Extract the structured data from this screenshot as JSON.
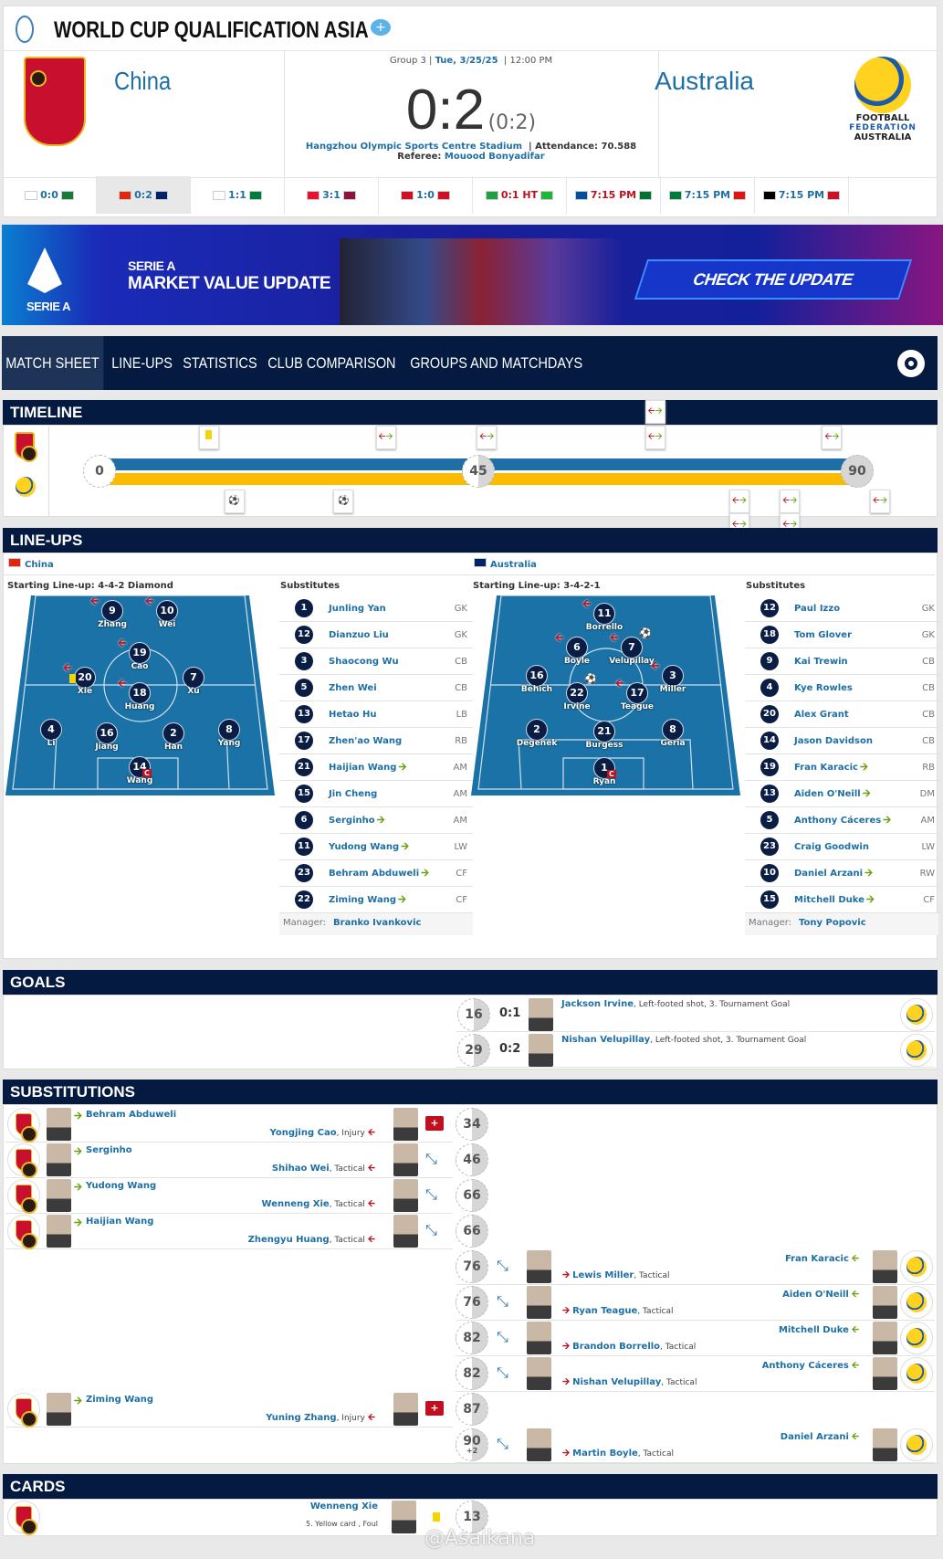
{
  "header": {
    "title": "WORLD CUP QUALIFICATION ASIA",
    "home": "China",
    "away": "Australia",
    "group": "Group 3",
    "date": "Tue, 3/25/25",
    "time": "12:00 PM",
    "score": "0:2",
    "halftime": "(0:2)",
    "stadium": "Hangzhou Olympic Sports Centre Stadium",
    "attendance_label": "Attendance:",
    "attendance": "70.588",
    "referee_label": "Referee:",
    "referee": "Mouood Bonyadifar",
    "away_logo_text": [
      "FOOTBALL",
      "FEDERATION",
      "AUSTRALIA"
    ]
  },
  "fixtures": [
    {
      "score": "0:0",
      "f1": "#ffffff",
      "f2": "#1a7a3a"
    },
    {
      "score": "0:2",
      "f1": "#de2910",
      "f2": "#012169",
      "active": true
    },
    {
      "score": "1:1",
      "f1": "#ffffff",
      "f2": "#007a3d"
    },
    {
      "score": "3:1",
      "f1": "#e8112d",
      "f2": "#8a1538"
    },
    {
      "score": "1:0",
      "f1": "#ce1126",
      "f2": "#ce1126"
    },
    {
      "score": "0:1 HT",
      "f1": "#239f40",
      "f2": "#1eb53a",
      "red": true
    },
    {
      "score": "7:15 PM",
      "f1": "#024fa2",
      "f2": "#00732f",
      "red": true
    },
    {
      "score": "7:15 PM",
      "f1": "#007a3d",
      "f2": "#db161b"
    },
    {
      "score": "7:15 PM",
      "f1": "#000000",
      "f2": "#ce1126"
    }
  ],
  "banner": {
    "brand": "SERIE A",
    "line1": "SERIE A",
    "line2": "MARKET VALUE UPDATE",
    "cta": "CHECK THE UPDATE"
  },
  "nav": {
    "tabs": [
      "MATCH SHEET",
      "LINE-UPS",
      "STATISTICS",
      "CLUB COMPARISON",
      "GROUPS AND MATCHDAYS"
    ],
    "active": 0,
    "settings_icon": "gear-icon"
  },
  "timeline": {
    "title": "TIMELINE",
    "marks": [
      "0",
      "45",
      "90"
    ],
    "home_events": [
      {
        "min": 13,
        "type": "yellow-card"
      },
      {
        "min": 34,
        "type": "substitution"
      },
      {
        "min": 46,
        "type": "substitution"
      },
      {
        "min": 66,
        "type": "substitution"
      },
      {
        "min": 66,
        "type": "substitution"
      },
      {
        "min": 87,
        "type": "substitution"
      }
    ],
    "away_events": [
      {
        "min": 16,
        "type": "goal"
      },
      {
        "min": 29,
        "type": "goal"
      },
      {
        "min": 76,
        "type": "substitution"
      },
      {
        "min": 76,
        "type": "substitution"
      },
      {
        "min": 82,
        "type": "substitution"
      },
      {
        "min": 82,
        "type": "substitution"
      },
      {
        "min": 92,
        "type": "substitution"
      }
    ]
  },
  "lineups": {
    "title": "LINE-UPS",
    "manager_label": "Manager:",
    "subs_label": "Substitutes",
    "home": {
      "team": "China",
      "formation": "Starting Line-up: 4-4-2 Diamond",
      "manager": "Branko Ivankovic",
      "players": [
        {
          "n": "9",
          "name": "Zhang",
          "off": true
        },
        {
          "n": "10",
          "name": "Wei",
          "off": true
        },
        {
          "n": "19",
          "name": "Cao",
          "off": true
        },
        {
          "n": "20",
          "name": "Xie",
          "off": true,
          "yellow": true
        },
        {
          "n": "7",
          "name": "Xu"
        },
        {
          "n": "18",
          "name": "Huang",
          "off": true
        },
        {
          "n": "4",
          "name": "Li"
        },
        {
          "n": "16",
          "name": "Jiang"
        },
        {
          "n": "2",
          "name": "Han"
        },
        {
          "n": "8",
          "name": "Yang"
        },
        {
          "n": "14",
          "name": "Wang",
          "captain": true
        }
      ],
      "subs": [
        {
          "n": "1",
          "name": "Junling Yan",
          "pos": "GK"
        },
        {
          "n": "12",
          "name": "Dianzuo Liu",
          "pos": "GK"
        },
        {
          "n": "3",
          "name": "Shaocong Wu",
          "pos": "CB"
        },
        {
          "n": "5",
          "name": "Zhen Wei",
          "pos": "CB"
        },
        {
          "n": "13",
          "name": "Hetao Hu",
          "pos": "LB"
        },
        {
          "n": "17",
          "name": "Zhen'ao Wang",
          "pos": "RB"
        },
        {
          "n": "21",
          "name": "Haijian Wang",
          "pos": "AM",
          "in": true
        },
        {
          "n": "15",
          "name": "Jin Cheng",
          "pos": "AM"
        },
        {
          "n": "6",
          "name": "Serginho",
          "pos": "AM",
          "in": true
        },
        {
          "n": "11",
          "name": "Yudong Wang",
          "pos": "LW",
          "in": true
        },
        {
          "n": "23",
          "name": "Behram Abduweli",
          "pos": "CF",
          "in": true
        },
        {
          "n": "22",
          "name": "Ziming Wang",
          "pos": "CF",
          "in": true
        }
      ]
    },
    "away": {
      "team": "Australia",
      "formation": "Starting Line-up: 3-4-2-1",
      "manager": "Tony Popovic",
      "players": [
        {
          "n": "11",
          "name": "Borrello",
          "off": true
        },
        {
          "n": "6",
          "name": "Boyle",
          "off": true
        },
        {
          "n": "7",
          "name": "Velupillay",
          "off": true,
          "goal": true
        },
        {
          "n": "16",
          "name": "Behich"
        },
        {
          "n": "22",
          "name": "Irvine",
          "goal": true
        },
        {
          "n": "17",
          "name": "Teague",
          "off": true
        },
        {
          "n": "3",
          "name": "Miller",
          "off": true
        },
        {
          "n": "2",
          "name": "Degenek"
        },
        {
          "n": "21",
          "name": "Burgess"
        },
        {
          "n": "8",
          "name": "Geria"
        },
        {
          "n": "1",
          "name": "Ryan",
          "captain": true
        }
      ],
      "subs": [
        {
          "n": "12",
          "name": "Paul Izzo",
          "pos": "GK"
        },
        {
          "n": "18",
          "name": "Tom Glover",
          "pos": "GK"
        },
        {
          "n": "9",
          "name": "Kai Trewin",
          "pos": "CB"
        },
        {
          "n": "4",
          "name": "Kye Rowles",
          "pos": "CB"
        },
        {
          "n": "20",
          "name": "Alex Grant",
          "pos": "CB"
        },
        {
          "n": "14",
          "name": "Jason Davidson",
          "pos": "CB"
        },
        {
          "n": "19",
          "name": "Fran Karacic",
          "pos": "RB",
          "in": true
        },
        {
          "n": "13",
          "name": "Aiden O'Neill",
          "pos": "DM",
          "in": true
        },
        {
          "n": "5",
          "name": "Anthony Cáceres",
          "pos": "AM",
          "in": true
        },
        {
          "n": "23",
          "name": "Craig Goodwin",
          "pos": "LW"
        },
        {
          "n": "10",
          "name": "Daniel Arzani",
          "pos": "RW",
          "in": true
        },
        {
          "n": "15",
          "name": "Mitchell Duke",
          "pos": "CF",
          "in": true
        }
      ]
    }
  },
  "goals": {
    "title": "GOALS",
    "items": [
      {
        "min": "16",
        "score": "0:1",
        "player": "Jackson Irvine",
        "detail": ", Left-footed shot, 3. Tournament Goal"
      },
      {
        "min": "29",
        "score": "0:2",
        "player": "Nishan Velupillay",
        "detail": ", Left-footed shot, 3. Tournament Goal"
      }
    ]
  },
  "subs": {
    "title": "SUBSTITUTIONS",
    "items": [
      {
        "side": "home",
        "min": "34",
        "in": "Behram Abduweli",
        "out": "Yongjing Cao",
        "reason": ", Injury",
        "icon": "injury"
      },
      {
        "side": "home",
        "min": "46",
        "in": "Serginho",
        "out": "Shihao Wei",
        "reason": ", Tactical",
        "icon": "tactical"
      },
      {
        "side": "home",
        "min": "66",
        "in": "Yudong Wang",
        "out": "Wenneng Xie",
        "reason": ", Tactical",
        "icon": "tactical"
      },
      {
        "side": "home",
        "min": "66",
        "in": "Haijian Wang",
        "out": "Zhengyu Huang",
        "reason": ", Tactical",
        "icon": "tactical"
      },
      {
        "side": "away",
        "min": "76",
        "in": "Fran Karacic",
        "out": "Lewis Miller",
        "reason": ", Tactical",
        "icon": "tactical"
      },
      {
        "side": "away",
        "min": "76",
        "in": "Aiden O'Neill",
        "out": "Ryan Teague",
        "reason": ", Tactical",
        "icon": "tactical"
      },
      {
        "side": "away",
        "min": "82",
        "in": "Mitchell Duke",
        "out": "Brandon Borrello",
        "reason": ", Tactical",
        "icon": "tactical"
      },
      {
        "side": "away",
        "min": "82",
        "in": "Anthony Cáceres",
        "out": "Nishan Velupillay",
        "reason": ", Tactical",
        "icon": "tactical"
      },
      {
        "side": "home",
        "min": "87",
        "in": "Ziming Wang",
        "out": "Yuning Zhang",
        "reason": ", Injury",
        "icon": "injury"
      },
      {
        "side": "away",
        "min": "90",
        "extra": "+2",
        "in": "Daniel Arzani",
        "out": "Martin Boyle",
        "reason": ", Tactical",
        "icon": "tactical"
      }
    ]
  },
  "cards": {
    "title": "CARDS",
    "items": [
      {
        "min": "13",
        "player": "Wenneng Xie",
        "detail": "5. Yellow card , Foul"
      }
    ]
  },
  "watermark": "@Asaikana"
}
